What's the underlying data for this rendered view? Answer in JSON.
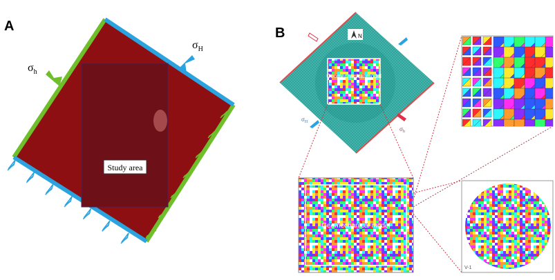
{
  "panel_a": {
    "label": "A",
    "stress_max": {
      "symbol": "σ",
      "subscript": "H"
    },
    "stress_min": {
      "symbol": "σ",
      "subscript": "h"
    },
    "study_area": "Study area"
  },
  "panel_b": {
    "label": "B",
    "north": "N",
    "model_label": "Geomechanical model",
    "zoom_model_label": "Geomechanical model",
    "stress_max": {
      "symbol": "σ",
      "subscript": "H"
    },
    "stress_min": {
      "symbol": "σ",
      "subscript": "h"
    },
    "sample_label": "V-1"
  }
}
